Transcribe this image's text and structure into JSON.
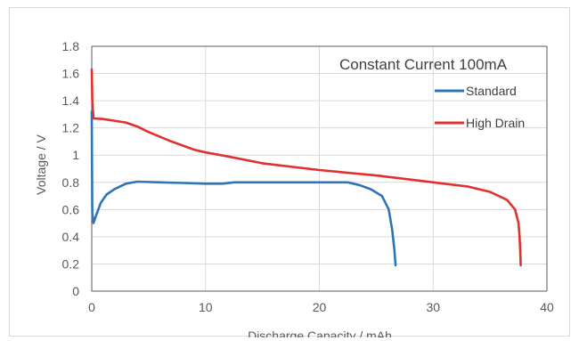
{
  "chart_data": {
    "type": "line",
    "title": "",
    "annotation": "Constant Current 100mA",
    "xlabel": "Discharge Capacity / mAh",
    "ylabel": "Voltage / V",
    "xlim": [
      0,
      40
    ],
    "ylim": [
      0,
      1.8
    ],
    "xticks": [
      0,
      10,
      20,
      30,
      40
    ],
    "yticks": [
      0,
      0.2,
      0.4,
      0.6,
      0.8,
      1,
      1.2,
      1.4,
      1.6,
      1.8
    ],
    "xtick_labels": [
      "0",
      "10",
      "20",
      "30",
      "40"
    ],
    "ytick_labels": [
      "0",
      "0.2",
      "0.4",
      "0.6",
      "0.8",
      "1",
      "1.2",
      "1.4",
      "1.6",
      "1.8"
    ],
    "grid": true,
    "legend_position": "top-right",
    "series": [
      {
        "name": "Standard",
        "color": "#2e75b6",
        "points": [
          [
            0,
            1.32
          ],
          [
            0.02,
            0.9
          ],
          [
            0.05,
            0.58
          ],
          [
            0.15,
            0.5
          ],
          [
            0.4,
            0.56
          ],
          [
            0.8,
            0.65
          ],
          [
            1.3,
            0.71
          ],
          [
            2,
            0.75
          ],
          [
            3,
            0.79
          ],
          [
            4,
            0.805
          ],
          [
            6,
            0.8
          ],
          [
            8,
            0.795
          ],
          [
            10,
            0.79
          ],
          [
            11.5,
            0.79
          ],
          [
            12.5,
            0.8
          ],
          [
            15,
            0.8
          ],
          [
            20,
            0.8
          ],
          [
            22.5,
            0.8
          ],
          [
            23.5,
            0.78
          ],
          [
            24.5,
            0.75
          ],
          [
            25.5,
            0.7
          ],
          [
            26.1,
            0.6
          ],
          [
            26.4,
            0.45
          ],
          [
            26.6,
            0.3
          ],
          [
            26.7,
            0.19
          ]
        ]
      },
      {
        "name": "High Drain",
        "color": "#e03030",
        "points": [
          [
            0,
            1.63
          ],
          [
            0.05,
            1.4
          ],
          [
            0.15,
            1.27
          ],
          [
            1,
            1.265
          ],
          [
            3,
            1.24
          ],
          [
            4,
            1.21
          ],
          [
            5,
            1.17
          ],
          [
            7,
            1.1
          ],
          [
            9,
            1.04
          ],
          [
            10,
            1.02
          ],
          [
            12,
            0.99
          ],
          [
            15,
            0.94
          ],
          [
            20,
            0.89
          ],
          [
            25,
            0.85
          ],
          [
            28,
            0.82
          ],
          [
            30,
            0.8
          ],
          [
            33,
            0.77
          ],
          [
            35,
            0.73
          ],
          [
            36.5,
            0.67
          ],
          [
            37.2,
            0.6
          ],
          [
            37.5,
            0.5
          ],
          [
            37.6,
            0.4
          ],
          [
            37.65,
            0.3
          ],
          [
            37.7,
            0.19
          ]
        ]
      }
    ]
  }
}
